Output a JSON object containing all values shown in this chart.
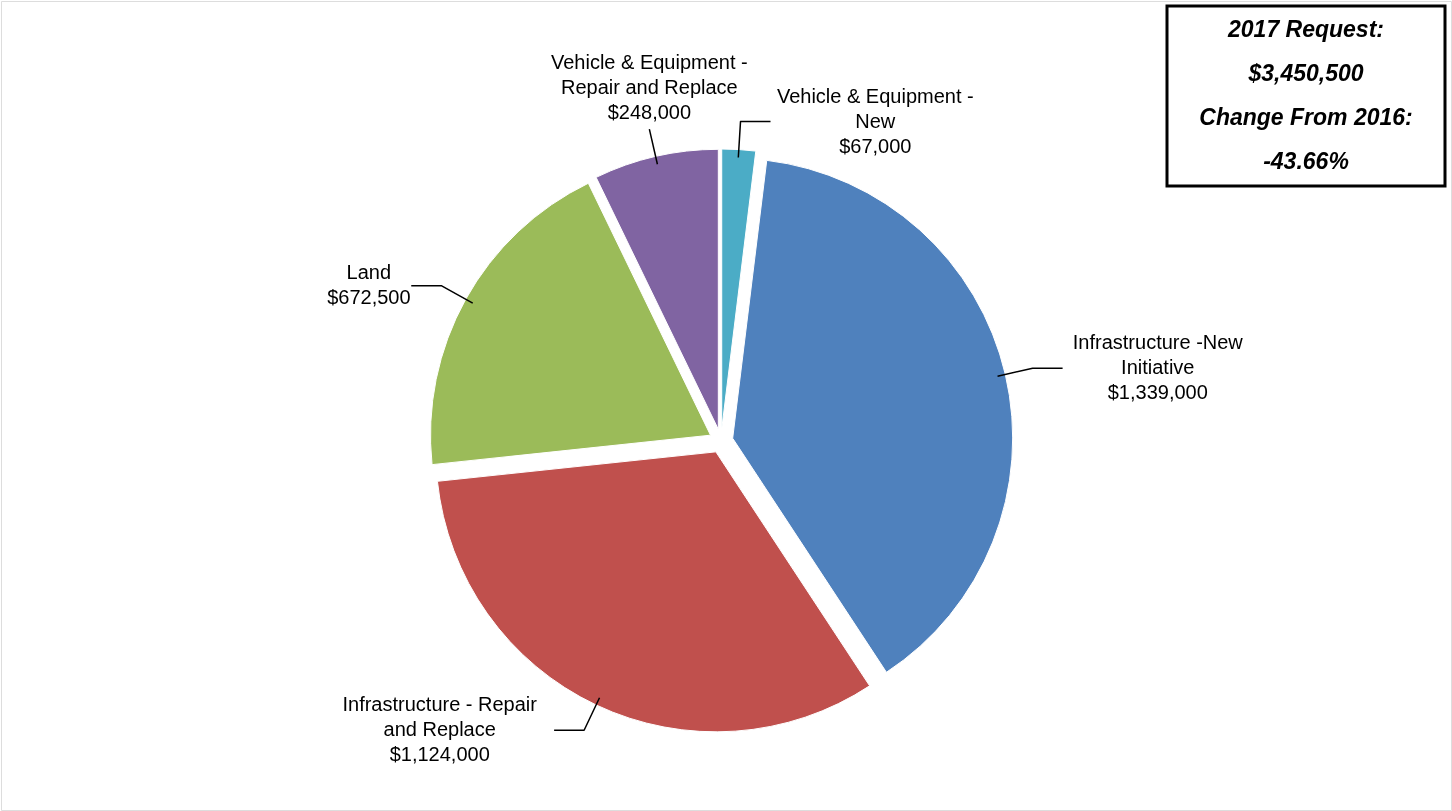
{
  "chart_data": {
    "type": "pie",
    "categories": [
      "Vehicle & Equipment - New",
      "Infrastructure -New Initiative",
      "Infrastructure - Repair and Replace",
      "Land",
      "Vehicle & Equipment - Repair and Replace"
    ],
    "values": [
      67000,
      1339000,
      1124000,
      672500,
      248000
    ],
    "colors": [
      "#4bacc6",
      "#4f81bd",
      "#c0504d",
      "#9bbb59",
      "#8064a2"
    ],
    "value_labels": [
      "$67,000",
      "$1,339,000",
      "$1,124,000",
      "$672,500",
      "$248,000"
    ],
    "annotations": [
      "2017 Request:",
      "$3,450,500",
      "Change From 2016:",
      "-43.66%"
    ]
  }
}
